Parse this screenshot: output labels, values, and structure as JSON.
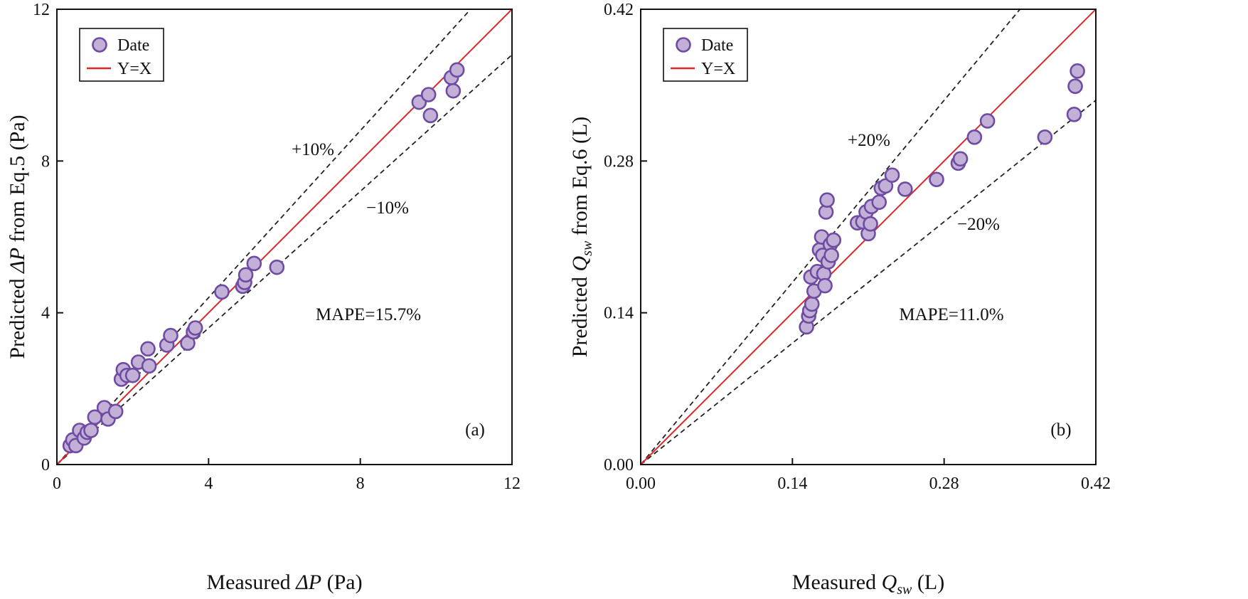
{
  "colors": {
    "marker_fill": "#c3b0d6",
    "marker_edge": "#6f4ca3",
    "identity_line": "#e0262a",
    "band_line": "#222222",
    "axis": "#111111"
  },
  "chart_data": [
    {
      "type": "scatter",
      "panel_label": "(a)",
      "xlabel_prefix": "Measured ",
      "xlabel_symbol": "ΔP",
      "xlabel_suffix": " (Pa)",
      "ylabel_prefix": "Predicted ",
      "ylabel_symbol": "ΔP",
      "ylabel_suffix": " from Eq.5 (Pa)",
      "xlim": [
        0,
        12
      ],
      "ylim": [
        0,
        12
      ],
      "xticks": [
        0,
        4,
        8,
        12
      ],
      "yticks": [
        0,
        4,
        8,
        12
      ],
      "xtick_labels": [
        "0",
        "4",
        "8",
        "12"
      ],
      "ytick_labels": [
        "0",
        "4",
        "8",
        "12"
      ],
      "legend": {
        "placement": "top-left",
        "series_label": "Date",
        "line_label": "Y=X"
      },
      "annotations": {
        "upper_band": "+10%",
        "lower_band": "−10%",
        "mape": "MAPE=15.7%"
      },
      "band_factors": [
        1.1,
        0.9
      ],
      "series": [
        {
          "name": "Date",
          "x": [
            0.35,
            0.42,
            0.5,
            0.6,
            0.72,
            0.8,
            0.9,
            1.0,
            1.25,
            1.35,
            1.55,
            1.7,
            1.75,
            1.85,
            2.0,
            2.15,
            2.4,
            2.43,
            2.9,
            3.0,
            3.45,
            3.6,
            3.65,
            4.35,
            4.9,
            4.95,
            4.98,
            5.2,
            5.8,
            9.55,
            9.8,
            9.85,
            10.4,
            10.45,
            10.55
          ],
          "y": [
            0.5,
            0.65,
            0.5,
            0.9,
            0.7,
            0.85,
            0.9,
            1.25,
            1.5,
            1.2,
            1.4,
            2.25,
            2.5,
            2.35,
            2.35,
            2.7,
            3.05,
            2.6,
            3.15,
            3.4,
            3.2,
            3.5,
            3.6,
            4.55,
            4.7,
            4.8,
            5.0,
            5.3,
            5.2,
            9.55,
            9.75,
            9.2,
            10.2,
            9.85,
            10.4
          ]
        }
      ]
    },
    {
      "type": "scatter",
      "panel_label": "(b)",
      "xlabel_prefix": "Measured ",
      "xlabel_symbol": "Q",
      "xlabel_sub": "sw",
      "xlabel_suffix": " (L)",
      "ylabel_prefix": "Predicted ",
      "ylabel_symbol": "Q",
      "ylabel_sub": "sw",
      "ylabel_suffix": " from Eq.6 (L)",
      "xlim": [
        0,
        0.42
      ],
      "ylim": [
        0,
        0.42
      ],
      "xticks": [
        0,
        0.14,
        0.28,
        0.42
      ],
      "yticks": [
        0,
        0.14,
        0.28,
        0.42
      ],
      "xtick_labels": [
        "0.00",
        "0.14",
        "0.28",
        "0.42"
      ],
      "ytick_labels": [
        "0.00",
        "0.14",
        "0.28",
        "0.42"
      ],
      "legend": {
        "placement": "top-left",
        "series_label": "Date",
        "line_label": "Y=X"
      },
      "annotations": {
        "upper_band": "+20%",
        "lower_band": "−20%",
        "mape": "MAPE=11.0%"
      },
      "band_factors": [
        1.2,
        0.8
      ],
      "series": [
        {
          "name": "Date",
          "x": [
            0.153,
            0.155,
            0.156,
            0.158,
            0.157,
            0.16,
            0.163,
            0.165,
            0.167,
            0.168,
            0.169,
            0.17,
            0.171,
            0.172,
            0.173,
            0.175,
            0.176,
            0.178,
            0.2,
            0.205,
            0.208,
            0.21,
            0.212,
            0.213,
            0.22,
            0.222,
            0.226,
            0.232,
            0.244,
            0.273,
            0.293,
            0.295,
            0.308,
            0.32,
            0.373,
            0.4,
            0.401,
            0.403
          ],
          "y": [
            0.127,
            0.137,
            0.142,
            0.148,
            0.173,
            0.16,
            0.178,
            0.198,
            0.21,
            0.193,
            0.176,
            0.165,
            0.233,
            0.244,
            0.187,
            0.203,
            0.193,
            0.207,
            0.223,
            0.224,
            0.233,
            0.213,
            0.222,
            0.238,
            0.242,
            0.255,
            0.257,
            0.267,
            0.254,
            0.263,
            0.278,
            0.282,
            0.302,
            0.317,
            0.302,
            0.323,
            0.349,
            0.363
          ]
        }
      ]
    }
  ]
}
